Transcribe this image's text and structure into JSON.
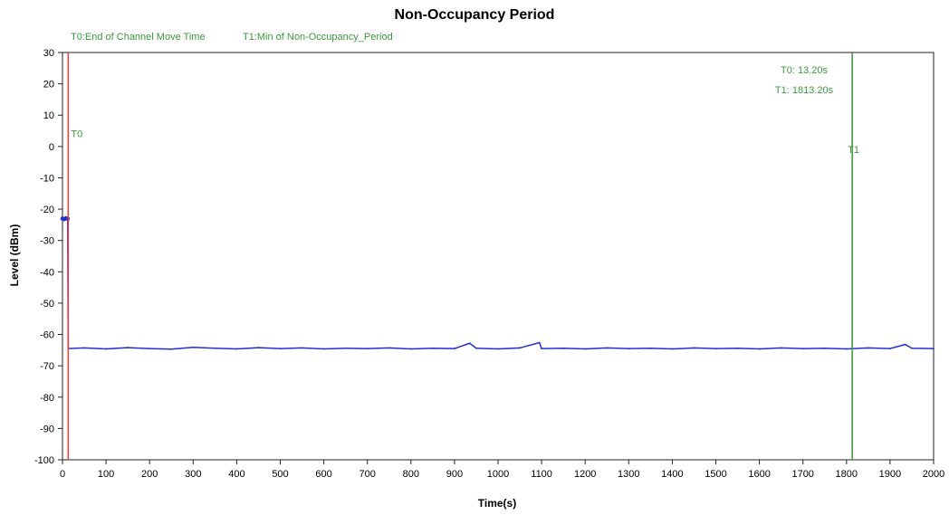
{
  "chart_data": {
    "type": "line",
    "title": "Non-Occupancy Period",
    "xlabel": "Time(s)",
    "ylabel": "Level (dBm)",
    "xlim": [
      0,
      2000
    ],
    "ylim": [
      -100,
      30
    ],
    "x_ticks": [
      0,
      100,
      200,
      300,
      400,
      500,
      600,
      700,
      800,
      900,
      1000,
      1100,
      1200,
      1300,
      1400,
      1500,
      1600,
      1700,
      1800,
      1900,
      2000
    ],
    "y_ticks": [
      30,
      20,
      10,
      0,
      -10,
      -20,
      -30,
      -40,
      -50,
      -60,
      -70,
      -80,
      -90,
      -100
    ],
    "grid": true,
    "legend": [
      {
        "label": "T0:End of Channel Move Time",
        "color": "#3a9a3a"
      },
      {
        "label": "T1:Min of Non-Occupancy_Period",
        "color": "#3a9a3a"
      }
    ],
    "annotations": {
      "t0_value": "T0: 13.20s",
      "t1_value": "T1: 1813.20s"
    },
    "markers": [
      {
        "name": "T0",
        "x": 13.2,
        "color": "#e23b3b"
      },
      {
        "name": "T1",
        "x": 1813.2,
        "color": "#3a9a3a"
      }
    ],
    "series": [
      {
        "color": "#1f2fd6",
        "points": [
          [
            0,
            -23
          ],
          [
            4,
            -23.2
          ],
          [
            8,
            -22.9
          ],
          [
            12,
            -23.1
          ],
          [
            13.2,
            -64.5
          ],
          [
            50,
            -64.3
          ],
          [
            100,
            -64.6
          ],
          [
            150,
            -64.2
          ],
          [
            200,
            -64.5
          ],
          [
            250,
            -64.7
          ],
          [
            300,
            -64.1
          ],
          [
            350,
            -64.4
          ],
          [
            400,
            -64.6
          ],
          [
            450,
            -64.2
          ],
          [
            500,
            -64.5
          ],
          [
            550,
            -64.3
          ],
          [
            600,
            -64.6
          ],
          [
            650,
            -64.4
          ],
          [
            700,
            -64.5
          ],
          [
            750,
            -64.3
          ],
          [
            800,
            -64.6
          ],
          [
            850,
            -64.4
          ],
          [
            900,
            -64.5
          ],
          [
            935,
            -62.8
          ],
          [
            950,
            -64.4
          ],
          [
            1000,
            -64.6
          ],
          [
            1050,
            -64.3
          ],
          [
            1095,
            -62.6
          ],
          [
            1100,
            -64.5
          ],
          [
            1150,
            -64.4
          ],
          [
            1200,
            -64.6
          ],
          [
            1250,
            -64.3
          ],
          [
            1300,
            -64.5
          ],
          [
            1350,
            -64.4
          ],
          [
            1400,
            -64.6
          ],
          [
            1450,
            -64.3
          ],
          [
            1500,
            -64.5
          ],
          [
            1550,
            -64.4
          ],
          [
            1600,
            -64.6
          ],
          [
            1650,
            -64.3
          ],
          [
            1700,
            -64.5
          ],
          [
            1750,
            -64.4
          ],
          [
            1800,
            -64.6
          ],
          [
            1850,
            -64.3
          ],
          [
            1900,
            -64.5
          ],
          [
            1935,
            -63.2
          ],
          [
            1950,
            -64.4
          ],
          [
            2000,
            -64.5
          ]
        ]
      }
    ]
  }
}
